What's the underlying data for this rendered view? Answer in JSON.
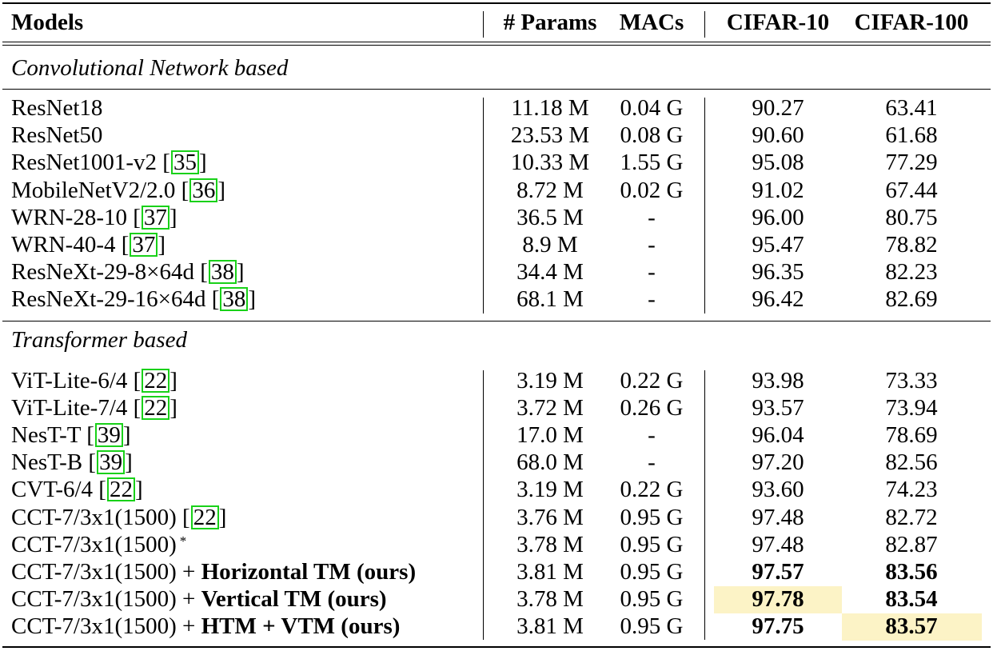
{
  "columns": [
    "Models",
    "# Params",
    "MACs",
    "CIFAR-10",
    "CIFAR-100"
  ],
  "sections": [
    {
      "title": "Convolutional Network based",
      "rows": [
        {
          "model": "ResNet18",
          "cite": "",
          "params": "11.18 M",
          "macs": "0.04 G",
          "c10": "90.27",
          "c100": "63.41"
        },
        {
          "model": "ResNet50",
          "cite": "",
          "params": "23.53 M",
          "macs": "0.08 G",
          "c10": "90.60",
          "c100": "61.68"
        },
        {
          "model": "ResNet1001-v2 [",
          "cite": "35",
          "suffix": "]",
          "params": "10.33 M",
          "macs": "1.55 G",
          "c10": "95.08",
          "c100": "77.29"
        },
        {
          "model": "MobileNetV2/2.0 [",
          "cite": "36",
          "suffix": "]",
          "params": "8.72 M",
          "macs": "0.02 G",
          "c10": "91.02",
          "c100": "67.44"
        },
        {
          "model": "WRN-28-10 [",
          "cite": "37",
          "suffix": "]",
          "params": "36.5 M",
          "macs": "-",
          "c10": "96.00",
          "c100": "80.75"
        },
        {
          "model": "WRN-40-4 [",
          "cite": "37",
          "suffix": "]",
          "params": "8.9 M",
          "macs": "-",
          "c10": "95.47",
          "c100": "78.82"
        },
        {
          "model": "ResNeXt-29-8×64d [",
          "cite": "38",
          "suffix": "]",
          "params": "34.4 M",
          "macs": "-",
          "c10": "96.35",
          "c100": "82.23"
        },
        {
          "model": "ResNeXt-29-16×64d [",
          "cite": "38",
          "suffix": "]",
          "params": "68.1 M",
          "macs": "-",
          "c10": "96.42",
          "c100": "82.69"
        }
      ]
    },
    {
      "title": "Transformer based",
      "rows": [
        {
          "model": "ViT-Lite-6/4 [",
          "cite": "22",
          "suffix": "]",
          "params": "3.19 M",
          "macs": "0.22 G",
          "c10": "93.98",
          "c100": "73.33"
        },
        {
          "model": "ViT-Lite-7/4 [",
          "cite": "22",
          "suffix": "]",
          "params": "3.72 M",
          "macs": "0.26 G",
          "c10": "93.57",
          "c100": "73.94"
        },
        {
          "model": "NesT-T [",
          "cite": "39",
          "suffix": "]",
          "params": "17.0 M",
          "macs": "-",
          "c10": "96.04",
          "c100": "78.69"
        },
        {
          "model": "NesT-B [",
          "cite": "39",
          "suffix": "]",
          "params": "68.0 M",
          "macs": "-",
          "c10": "97.20",
          "c100": "82.56"
        },
        {
          "model": "CVT-6/4 [",
          "cite": "22",
          "suffix": "]",
          "params": "3.19 M",
          "macs": "0.22 G",
          "c10": "93.60",
          "c100": "74.23"
        },
        {
          "model": "CCT-7/3x1(1500) [",
          "cite": "22",
          "suffix": "]",
          "params": "3.76 M",
          "macs": "0.95 G",
          "c10": "97.48",
          "c100": "82.72"
        },
        {
          "model": "CCT-7/3x1(1500)",
          "cite": "",
          "star": "*",
          "params": "3.78 M",
          "macs": "0.95 G",
          "c10": "97.48",
          "c100": "82.87"
        },
        {
          "model": "CCT-7/3x1(1500) + ",
          "bold_part": "Horizontal TM (ours)",
          "cite": "",
          "params": "3.81 M",
          "macs": "0.95 G",
          "c10": "97.57",
          "c100": "83.56",
          "c10_bold": true,
          "c100_bold": true
        },
        {
          "model": "CCT-7/3x1(1500) + ",
          "bold_part": "Vertical TM (ours)",
          "cite": "",
          "params": "3.78 M",
          "macs": "0.95 G",
          "c10": "97.78",
          "c100": "83.54",
          "c10_bold": true,
          "c100_bold": true,
          "c10_highlight": true
        },
        {
          "model": "CCT-7/3x1(1500) + ",
          "bold_part": "HTM + VTM (ours)",
          "cite": "",
          "params": "3.81 M",
          "macs": "0.95 G",
          "c10": "97.75",
          "c100": "83.57",
          "c10_bold": true,
          "c100_bold": true,
          "c100_highlight": true
        }
      ]
    }
  ],
  "colors": {
    "highlight": "#fcf3c6",
    "cite_border": "#19d119"
  }
}
